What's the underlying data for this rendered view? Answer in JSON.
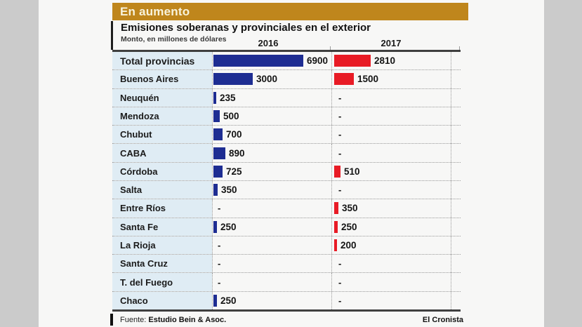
{
  "header": {
    "kicker": "En aumento",
    "title": "Emisiones soberanas y provinciales en el exterior",
    "subtitle": "Monto, en millones de dólares"
  },
  "columns": {
    "y2016": "2016",
    "y2017": "2017"
  },
  "chart_data": {
    "type": "bar",
    "orientation": "horizontal",
    "title": "Emisiones soberanas y provinciales en el exterior",
    "unit": "millones de dólares",
    "categories": [
      "Total provincias",
      "Buenos Aires",
      "Neuquén",
      "Mendoza",
      "Chubut",
      "CABA",
      "Córdoba",
      "Salta",
      "Entre Ríos",
      "Santa Fe",
      "La Rioja",
      "Santa Cruz",
      "T. del Fuego",
      "Chaco"
    ],
    "series": [
      {
        "name": "2016",
        "color": "#1e2d92",
        "values": [
          6900,
          3000,
          235,
          500,
          700,
          890,
          725,
          350,
          null,
          250,
          null,
          null,
          null,
          250
        ]
      },
      {
        "name": "2017",
        "color": "#e81b25",
        "values": [
          2810,
          1500,
          null,
          null,
          null,
          null,
          510,
          null,
          350,
          250,
          200,
          null,
          null,
          null
        ]
      }
    ],
    "null_marker": "-",
    "xmax": 6900,
    "value_labels": true,
    "legend_position": "column-headers",
    "grid": "dotted row and column separators"
  },
  "colors": {
    "kicker_bg": "#bf861c",
    "kicker_text": "#f8f3dc",
    "label_column_bg": "#dfecf4",
    "bar_2016": "#1e2d92",
    "bar_2017": "#e81b25",
    "page_bg": "#cbcbcb",
    "panel_bg": "#f7f7f6",
    "rule": "#3f3f3f"
  },
  "footer": {
    "source_label": "Fuente:",
    "source_name": "Estudio Bein & Asoc.",
    "credit": "El Cronista"
  }
}
